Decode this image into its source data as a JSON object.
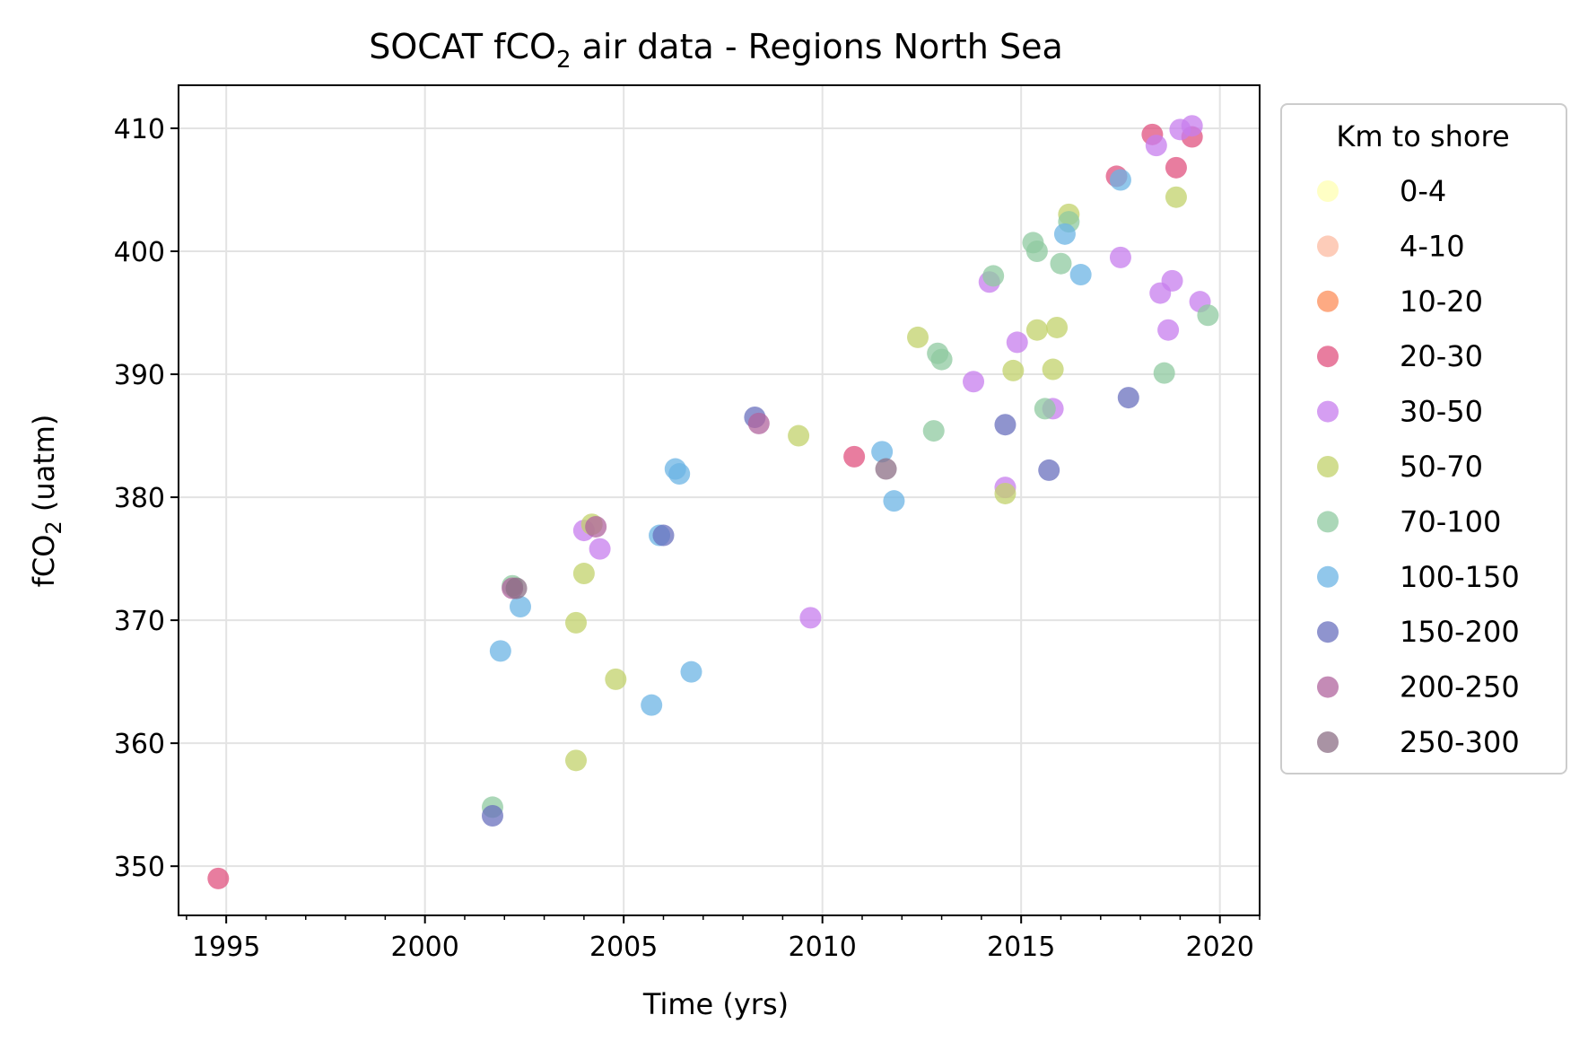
{
  "chart_data": {
    "type": "scatter",
    "title_main": "SOCAT fCO",
    "title_sub": "2",
    "title_rest": " air data - Regions North Sea",
    "xlabel": "Time (yrs)",
    "ylabel_main": "fCO",
    "ylabel_sub": "2",
    "ylabel_rest": " (uatm)",
    "xlim": [
      1993.8,
      2021.0
    ],
    "ylim": [
      346.0,
      413.5
    ],
    "x_ticks": [
      1995,
      2000,
      2005,
      2010,
      2015,
      2020
    ],
    "x_tick_labels": [
      "1995",
      "2000",
      "2005",
      "2010",
      "2015",
      "2020"
    ],
    "y_ticks": [
      350,
      360,
      370,
      380,
      390,
      400,
      410
    ],
    "y_tick_labels": [
      "350",
      "360",
      "370",
      "380",
      "390",
      "400",
      "410"
    ],
    "grid": true,
    "legend": {
      "title": "Km to shore",
      "placement": "outside-right-top"
    },
    "series": [
      {
        "name": "0-4",
        "color": "#ffffb2",
        "points": []
      },
      {
        "name": "4-10",
        "color": "#fcbba1",
        "points": []
      },
      {
        "name": "10-20",
        "color": "#fc8d59",
        "points": []
      },
      {
        "name": "20-30",
        "color": "#e0517f",
        "points": [
          [
            1994.8,
            349.0
          ],
          [
            2010.8,
            383.3
          ],
          [
            2017.4,
            406.1
          ],
          [
            2018.3,
            409.5
          ],
          [
            2018.9,
            406.8
          ],
          [
            2019.3,
            409.3
          ]
        ]
      },
      {
        "name": "30-50",
        "color": "#c77dee",
        "points": [
          [
            2004.0,
            377.3
          ],
          [
            2004.4,
            375.8
          ],
          [
            2009.7,
            370.2
          ],
          [
            2013.8,
            389.4
          ],
          [
            2014.2,
            397.5
          ],
          [
            2014.6,
            380.8
          ],
          [
            2014.9,
            392.6
          ],
          [
            2015.8,
            387.2
          ],
          [
            2017.5,
            399.5
          ],
          [
            2018.4,
            408.6
          ],
          [
            2018.5,
            396.6
          ],
          [
            2018.7,
            393.6
          ],
          [
            2018.8,
            397.6
          ],
          [
            2019.0,
            409.9
          ],
          [
            2019.3,
            410.2
          ],
          [
            2019.5,
            395.9
          ]
        ]
      },
      {
        "name": "50-70",
        "color": "#c2d26b",
        "points": [
          [
            2003.8,
            358.6
          ],
          [
            2003.8,
            369.8
          ],
          [
            2004.0,
            373.8
          ],
          [
            2004.2,
            377.8
          ],
          [
            2004.8,
            365.2
          ],
          [
            2009.4,
            385.0
          ],
          [
            2012.4,
            393.0
          ],
          [
            2014.6,
            380.3
          ],
          [
            2014.8,
            390.3
          ],
          [
            2015.4,
            393.6
          ],
          [
            2015.8,
            390.4
          ],
          [
            2015.9,
            393.8
          ],
          [
            2016.2,
            403.0
          ],
          [
            2018.9,
            404.4
          ]
        ]
      },
      {
        "name": "70-100",
        "color": "#8fc9a0",
        "points": [
          [
            2001.7,
            354.8
          ],
          [
            2002.2,
            372.8
          ],
          [
            2012.8,
            385.4
          ],
          [
            2012.9,
            391.7
          ],
          [
            2013.0,
            391.2
          ],
          [
            2014.3,
            398.0
          ],
          [
            2015.3,
            400.7
          ],
          [
            2015.4,
            400.0
          ],
          [
            2015.6,
            387.2
          ],
          [
            2016.0,
            399.0
          ],
          [
            2016.2,
            402.4
          ],
          [
            2018.6,
            390.1
          ],
          [
            2019.7,
            394.8
          ]
        ]
      },
      {
        "name": "100-150",
        "color": "#6cb4e4",
        "points": [
          [
            2001.9,
            367.5
          ],
          [
            2002.4,
            371.1
          ],
          [
            2005.7,
            363.1
          ],
          [
            2005.9,
            376.9
          ],
          [
            2006.3,
            382.3
          ],
          [
            2006.4,
            381.9
          ],
          [
            2006.7,
            365.8
          ],
          [
            2011.5,
            383.7
          ],
          [
            2011.8,
            379.7
          ],
          [
            2016.1,
            401.4
          ],
          [
            2016.5,
            398.1
          ],
          [
            2017.5,
            405.8
          ]
        ]
      },
      {
        "name": "150-200",
        "color": "#6a70bd",
        "points": [
          [
            2001.7,
            354.1
          ],
          [
            2006.0,
            376.9
          ],
          [
            2008.3,
            386.5
          ],
          [
            2014.6,
            385.9
          ],
          [
            2015.7,
            382.2
          ],
          [
            2017.7,
            388.1
          ]
        ]
      },
      {
        "name": "200-250",
        "color": "#b0649e",
        "points": [
          [
            2002.2,
            372.6
          ],
          [
            2004.3,
            377.6
          ],
          [
            2008.4,
            386.0
          ]
        ]
      },
      {
        "name": "250-300",
        "color": "#8c6f85",
        "points": [
          [
            2002.3,
            372.6
          ],
          [
            2011.6,
            382.3
          ]
        ]
      }
    ]
  }
}
